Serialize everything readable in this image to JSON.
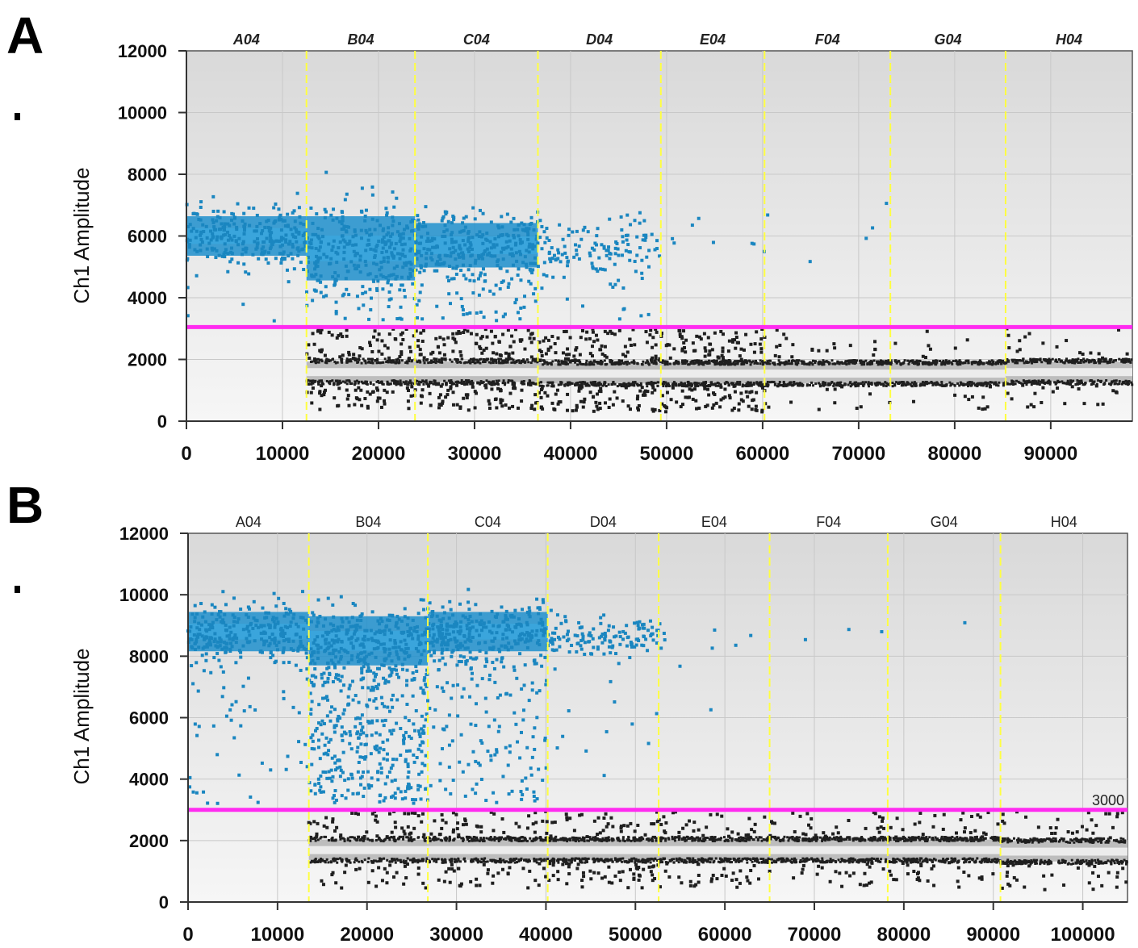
{
  "chart_data": [
    {
      "panel_label": "A",
      "type": "scatter",
      "ylabel": "Ch1 Amplitude",
      "xlabel": "",
      "xlim": [
        0,
        98500
      ],
      "ylim": [
        0,
        12000
      ],
      "xticks": [
        0,
        10000,
        20000,
        30000,
        40000,
        50000,
        60000,
        70000,
        80000,
        90000
      ],
      "yticks": [
        0,
        2000,
        4000,
        6000,
        8000,
        10000,
        12000
      ],
      "grid": true,
      "threshold": 3050,
      "threshold_label": "",
      "colors": {
        "positive": "#1a86c0",
        "negative": "#1f1f1f",
        "threshold": "#ff2bf0",
        "divider": "#ffff40"
      },
      "wells": [
        {
          "name": "A04",
          "x_start": 0,
          "x_end": 12500,
          "pos_center": 6000,
          "pos_spread": 800,
          "pos_count": 1200,
          "scatter_pos": 6,
          "neg_count": 0,
          "neg_center": 1600,
          "scatter_neg": 0
        },
        {
          "name": "B04",
          "x_start": 12500,
          "x_end": 23800,
          "pos_center": 5600,
          "pos_spread": 1300,
          "pos_count": 1000,
          "scatter_pos": 60,
          "neg_count": 900,
          "neg_center": 1600,
          "scatter_neg": 120
        },
        {
          "name": "C04",
          "x_start": 23800,
          "x_end": 36600,
          "pos_center": 5700,
          "pos_spread": 900,
          "pos_count": 500,
          "scatter_pos": 80,
          "neg_count": 1100,
          "neg_center": 1600,
          "scatter_neg": 160
        },
        {
          "name": "D04",
          "x_start": 36600,
          "x_end": 49400,
          "pos_center": 5600,
          "pos_spread": 800,
          "pos_count": 120,
          "scatter_pos": 20,
          "neg_count": 1200,
          "neg_center": 1550,
          "scatter_neg": 160
        },
        {
          "name": "E04",
          "x_start": 49400,
          "x_end": 60200,
          "pos_center": 5900,
          "pos_spread": 600,
          "pos_count": 8,
          "scatter_pos": 0,
          "neg_count": 1200,
          "neg_center": 1550,
          "scatter_neg": 150
        },
        {
          "name": "F04",
          "x_start": 60200,
          "x_end": 73300,
          "pos_center": 6000,
          "pos_spread": 900,
          "pos_count": 5,
          "scatter_pos": 0,
          "neg_count": 1300,
          "neg_center": 1550,
          "scatter_neg": 40
        },
        {
          "name": "G04",
          "x_start": 73300,
          "x_end": 85300,
          "pos_center": 6000,
          "pos_spread": 600,
          "pos_count": 0,
          "scatter_pos": 0,
          "neg_count": 1300,
          "neg_center": 1550,
          "scatter_neg": 20
        },
        {
          "name": "H04",
          "x_start": 85300,
          "x_end": 98500,
          "pos_center": 6000,
          "pos_spread": 600,
          "pos_count": 0,
          "scatter_pos": 0,
          "neg_count": 1300,
          "neg_center": 1600,
          "scatter_neg": 40
        }
      ]
    },
    {
      "panel_label": "B",
      "type": "scatter",
      "ylabel": "Ch1 Amplitude",
      "xlabel": "",
      "xlim": [
        0,
        105000
      ],
      "ylim": [
        0,
        12000
      ],
      "xticks": [
        0,
        10000,
        20000,
        30000,
        40000,
        50000,
        60000,
        70000,
        80000,
        90000,
        100000
      ],
      "yticks": [
        0,
        2000,
        4000,
        6000,
        8000,
        10000,
        12000
      ],
      "grid": true,
      "threshold": 3000,
      "threshold_label": "3000",
      "colors": {
        "positive": "#1a86c0",
        "negative": "#1f1f1f",
        "threshold": "#ff2bf0",
        "divider": "#ffff40"
      },
      "wells": [
        {
          "name": "A04",
          "x_start": 0,
          "x_end": 13500,
          "pos_center": 8800,
          "pos_spread": 800,
          "pos_count": 1200,
          "scatter_pos": 60,
          "neg_count": 0,
          "neg_center": 1700,
          "scatter_neg": 8
        },
        {
          "name": "B04",
          "x_start": 13500,
          "x_end": 26800,
          "pos_center": 8500,
          "pos_spread": 1000,
          "pos_count": 1000,
          "scatter_pos": 400,
          "neg_count": 900,
          "neg_center": 1700,
          "scatter_neg": 80
        },
        {
          "name": "C04",
          "x_start": 26800,
          "x_end": 40200,
          "pos_center": 8800,
          "pos_spread": 800,
          "pos_count": 900,
          "scatter_pos": 160,
          "neg_count": 1100,
          "neg_center": 1700,
          "scatter_neg": 80
        },
        {
          "name": "D04",
          "x_start": 40200,
          "x_end": 52600,
          "pos_center": 8600,
          "pos_spread": 500,
          "pos_count": 130,
          "scatter_pos": 15,
          "neg_count": 1200,
          "neg_center": 1700,
          "scatter_neg": 90
        },
        {
          "name": "E04",
          "x_start": 52600,
          "x_end": 65000,
          "pos_center": 8500,
          "pos_spread": 500,
          "pos_count": 8,
          "scatter_pos": 2,
          "neg_count": 1200,
          "neg_center": 1700,
          "scatter_neg": 70
        },
        {
          "name": "F04",
          "x_start": 65000,
          "x_end": 78200,
          "pos_center": 8700,
          "pos_spread": 300,
          "pos_count": 3,
          "scatter_pos": 0,
          "neg_count": 1300,
          "neg_center": 1700,
          "scatter_neg": 60
        },
        {
          "name": "G04",
          "x_start": 78200,
          "x_end": 90800,
          "pos_center": 9300,
          "pos_spread": 200,
          "pos_count": 1,
          "scatter_pos": 0,
          "neg_count": 1300,
          "neg_center": 1700,
          "scatter_neg": 60
        },
        {
          "name": "H04",
          "x_start": 90800,
          "x_end": 105000,
          "pos_center": 8800,
          "pos_spread": 400,
          "pos_count": 0,
          "scatter_pos": 0,
          "neg_count": 1300,
          "neg_center": 1650,
          "scatter_neg": 60
        }
      ]
    }
  ]
}
